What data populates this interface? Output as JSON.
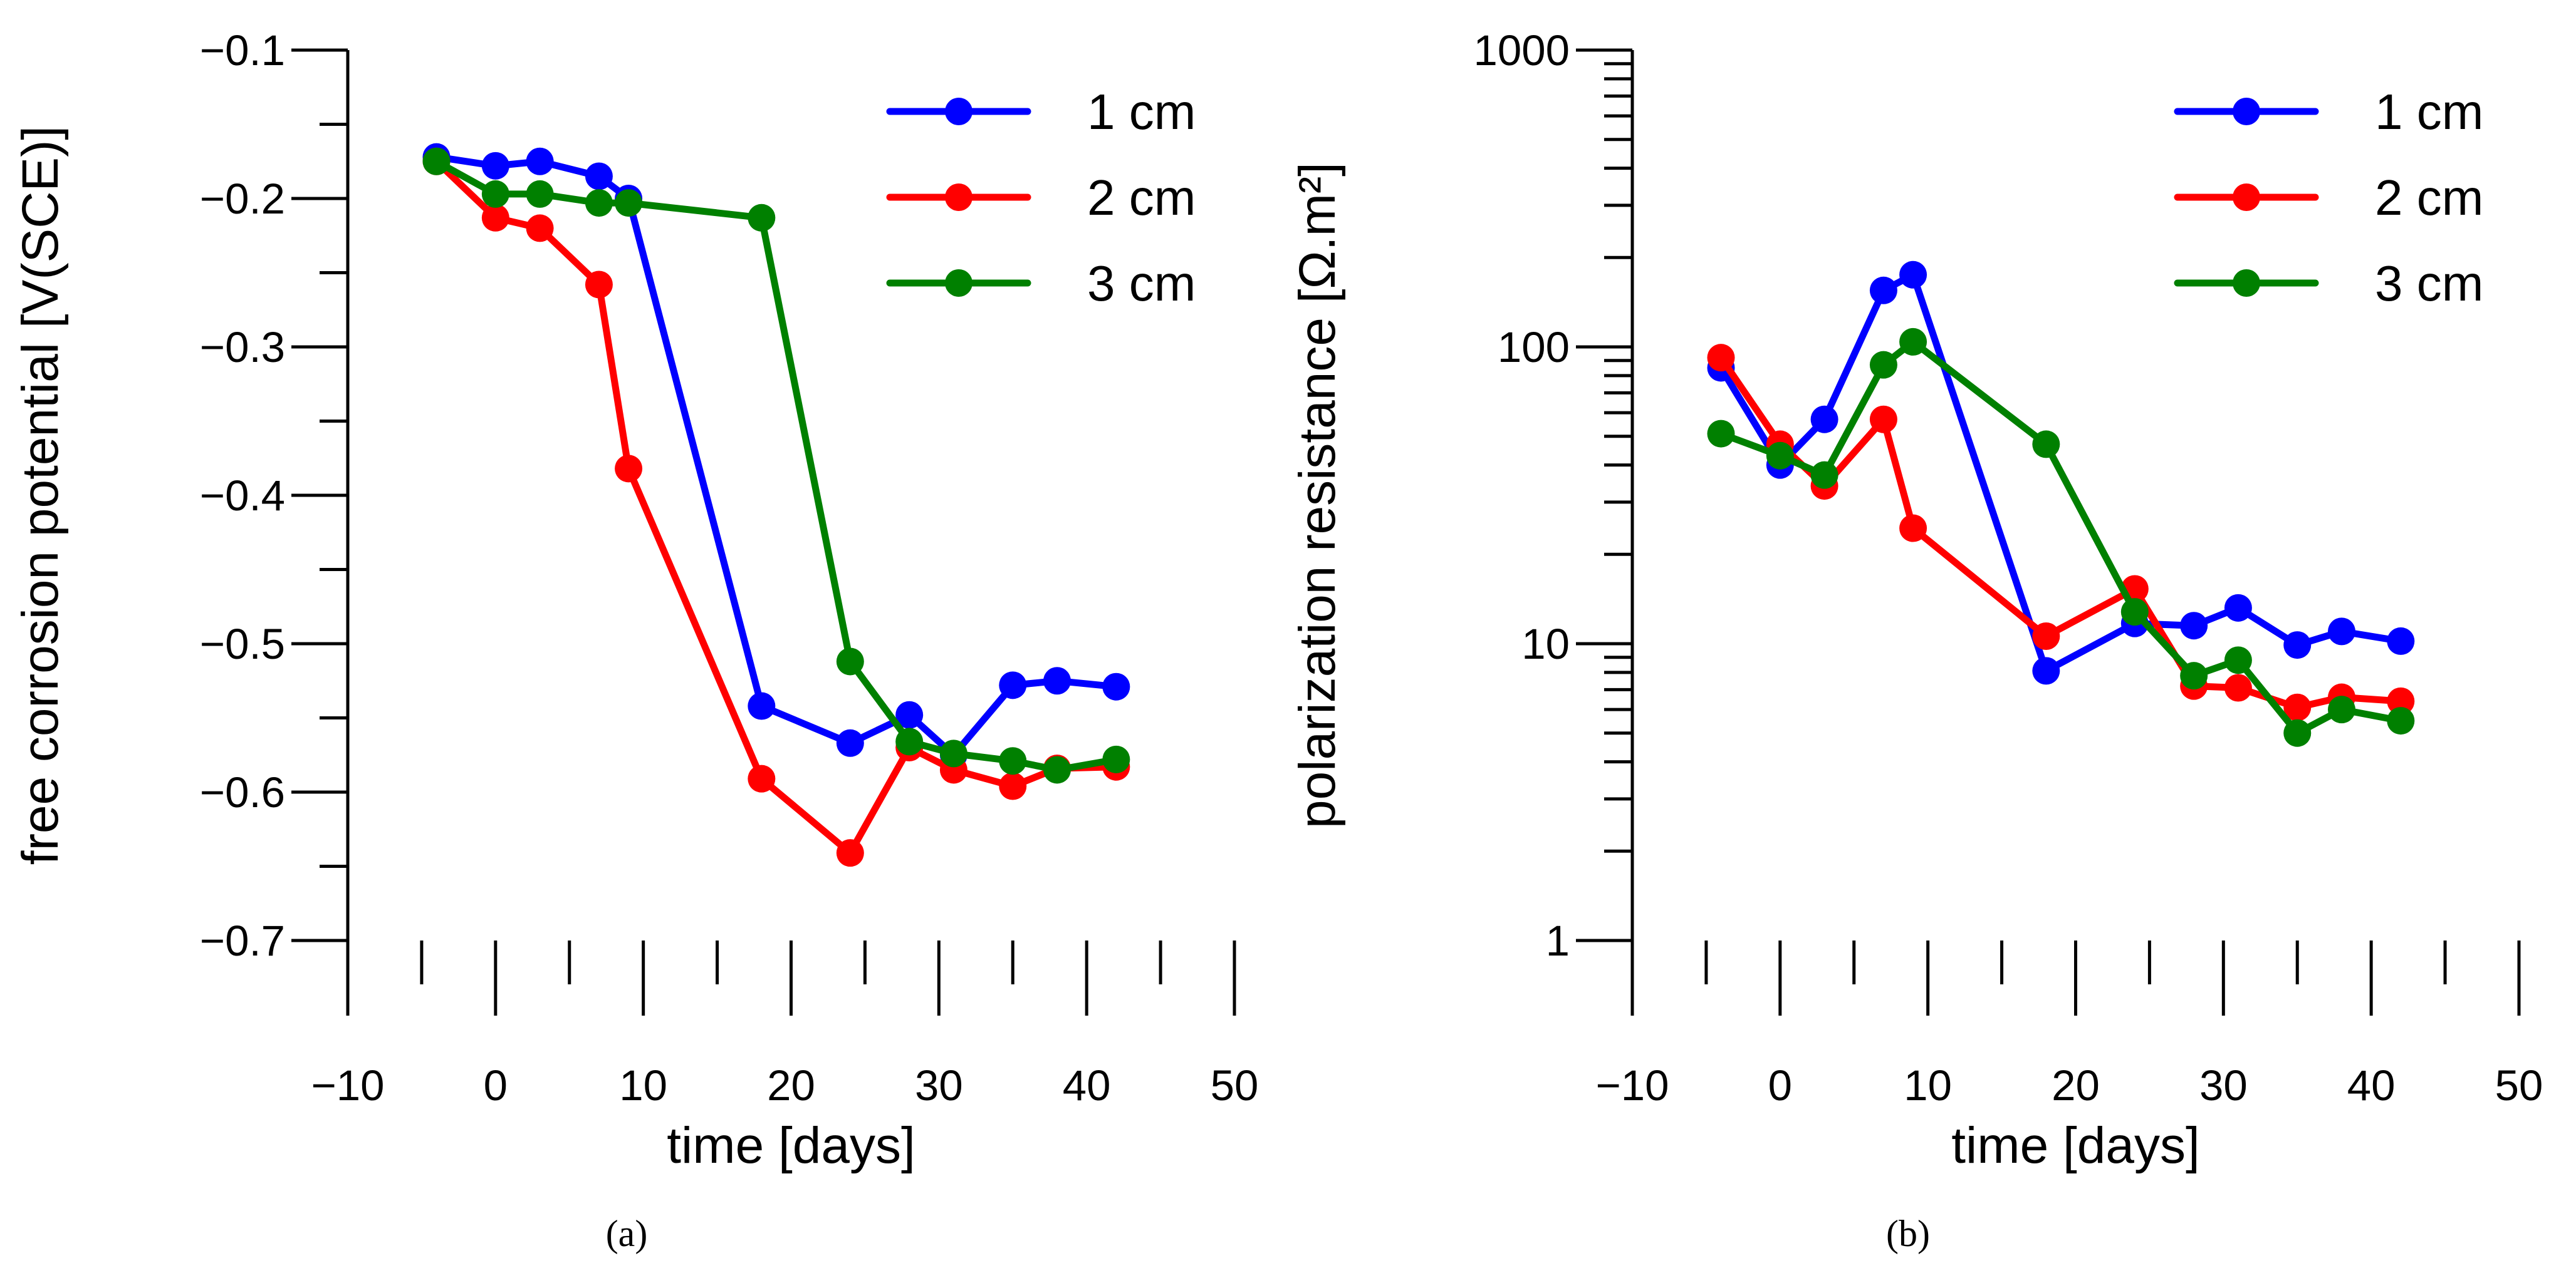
{
  "chart_data": [
    {
      "id": "a",
      "type": "line",
      "caption": "(a)",
      "xlabel": "time [days]",
      "ylabel": "free corrosion potential [V(SCE)]",
      "xlim": [
        -10,
        50
      ],
      "ylim": [
        -0.7,
        -0.1
      ],
      "yscale": "linear",
      "legend_position": "top-right",
      "xticks": [
        -10,
        0,
        10,
        20,
        30,
        40,
        50
      ],
      "xtick_labels": [
        "−10",
        "0",
        "10",
        "20",
        "30",
        "40",
        "50"
      ],
      "yticks": [
        -0.7,
        -0.6,
        -0.5,
        -0.4,
        -0.3,
        -0.2,
        -0.1
      ],
      "ytick_labels": [
        "−0.7",
        "−0.6",
        "−0.5",
        "−0.4",
        "−0.3",
        "−0.2",
        "−0.1"
      ],
      "yminor": [
        -0.65,
        -0.55,
        -0.45,
        -0.35,
        -0.25,
        -0.15
      ],
      "xminor": [
        -5,
        5,
        15,
        25,
        35,
        45
      ],
      "series": [
        {
          "name": "1 cm",
          "color": "#0000ff",
          "x": [
            -4,
            0,
            3,
            7,
            9,
            18,
            24,
            28,
            31,
            35,
            38,
            42
          ],
          "y": [
            -0.172,
            -0.178,
            -0.175,
            -0.185,
            -0.2,
            -0.542,
            -0.567,
            -0.548,
            -0.575,
            -0.528,
            -0.525,
            -0.529
          ]
        },
        {
          "name": "2 cm",
          "color": "#ff0000",
          "x": [
            -4,
            0,
            3,
            7,
            9,
            18,
            24,
            28,
            31,
            35,
            38,
            42
          ],
          "y": [
            -0.175,
            -0.213,
            -0.22,
            -0.258,
            -0.382,
            -0.591,
            -0.641,
            -0.57,
            -0.585,
            -0.596,
            -0.584,
            -0.583
          ]
        },
        {
          "name": "3 cm",
          "color": "#008000",
          "x": [
            -4,
            0,
            3,
            7,
            9,
            18,
            24,
            28,
            31,
            35,
            38,
            42
          ],
          "y": [
            -0.175,
            -0.197,
            -0.197,
            -0.203,
            -0.203,
            -0.213,
            -0.512,
            -0.566,
            -0.574,
            -0.579,
            -0.585,
            -0.578
          ]
        }
      ]
    },
    {
      "id": "b",
      "type": "line",
      "caption": "(b)",
      "xlabel": "time [days]",
      "ylabel": "polarization resistance [Ω.m²]",
      "xlim": [
        -10,
        50
      ],
      "ylim": [
        1,
        1000
      ],
      "yscale": "log",
      "legend_position": "top-right",
      "xticks": [
        -10,
        0,
        10,
        20,
        30,
        40,
        50
      ],
      "xtick_labels": [
        "−10",
        "0",
        "10",
        "20",
        "30",
        "40",
        "50"
      ],
      "yticks": [
        1,
        10,
        100,
        1000
      ],
      "ytick_labels": [
        "1",
        "10",
        "100",
        "1000"
      ],
      "yminor": [
        2,
        3,
        4,
        5,
        6,
        7,
        8,
        9,
        20,
        30,
        40,
        50,
        60,
        70,
        80,
        90,
        200,
        300,
        400,
        500,
        600,
        700,
        800,
        900
      ],
      "xminor": [
        -5,
        5,
        15,
        25,
        35,
        45
      ],
      "series": [
        {
          "name": "1 cm",
          "color": "#0000ff",
          "x": [
            -4,
            0,
            3,
            7,
            9,
            18,
            24,
            28,
            31,
            35,
            38,
            42
          ],
          "y": [
            85,
            40,
            57,
            155,
            175,
            8.1,
            11.7,
            11.5,
            13.2,
            9.9,
            11,
            10.2
          ]
        },
        {
          "name": "2 cm",
          "color": "#ff0000",
          "x": [
            -4,
            0,
            3,
            7,
            9,
            18,
            24,
            28,
            31,
            35,
            38,
            42
          ],
          "y": [
            92,
            47,
            34,
            57,
            24.5,
            10.6,
            15.3,
            7.2,
            7.1,
            6.1,
            6.6,
            6.4
          ]
        },
        {
          "name": "3 cm",
          "color": "#008000",
          "x": [
            -4,
            0,
            3,
            7,
            9,
            18,
            24,
            28,
            31,
            35,
            38,
            42
          ],
          "y": [
            51,
            43,
            37,
            87,
            104,
            47,
            12.8,
            7.8,
            8.8,
            5,
            6,
            5.5
          ]
        }
      ]
    }
  ]
}
